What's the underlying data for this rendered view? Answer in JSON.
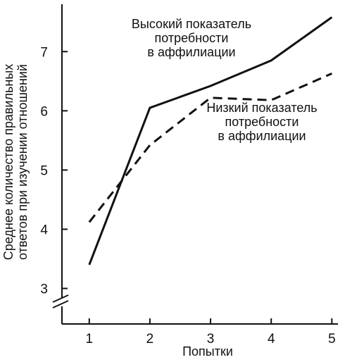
{
  "chart_data": {
    "type": "line",
    "x": [
      1,
      2,
      3,
      4,
      5
    ],
    "series": [
      {
        "name": "Высокий показатель потребности в аффилиации",
        "values": [
          3.4,
          6.05,
          6.42,
          6.85,
          7.58
        ],
        "style": "solid",
        "color": "#111111"
      },
      {
        "name": "Низкий показатель потребности в аффилиации",
        "values": [
          4.12,
          5.42,
          6.22,
          6.18,
          6.63
        ],
        "style": "dashed",
        "color": "#111111"
      }
    ],
    "xlabel": "Попытки",
    "ylabel_lines": [
      "Среднее количество правильных",
      "ответов при изучении отношений"
    ],
    "x_ticks": [
      "1",
      "2",
      "3",
      "4",
      "5"
    ],
    "y_ticks": [
      "3",
      "4",
      "5",
      "6",
      "7"
    ],
    "x_tick_values": [
      1,
      2,
      3,
      4,
      5
    ],
    "y_tick_values": [
      3,
      4,
      5,
      6,
      7
    ],
    "xlim": [
      0.55,
      5.1
    ],
    "ylim": [
      2.4,
      7.8
    ],
    "y_axis_break": true,
    "grid": false,
    "annotations": [
      {
        "lines": [
          "Высокий показатель",
          "потребности",
          "в аффилиации"
        ]
      },
      {
        "lines": [
          "Низкий показатель",
          "потребности",
          "в аффилиации"
        ]
      }
    ]
  }
}
